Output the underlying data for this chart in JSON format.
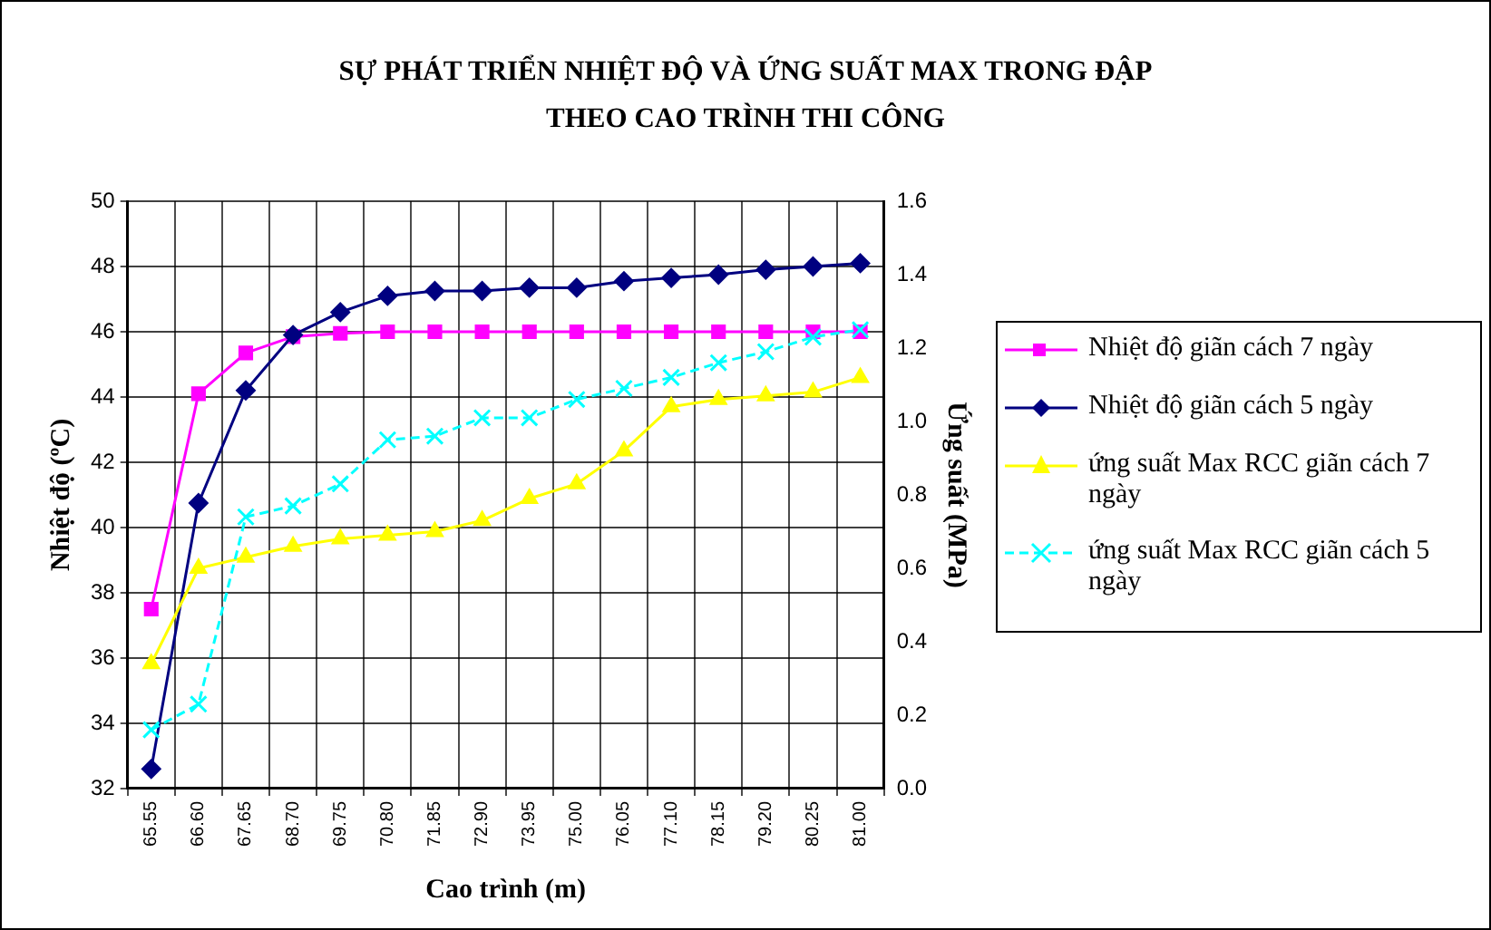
{
  "chart_data": {
    "type": "line",
    "title": "SỰ PHÁT TRIỂN NHIỆT ĐỘ VÀ ỨNG SUẤT MAX TRONG ĐẬP\nTHEO CAO TRÌNH THI CÔNG",
    "xlabel": "Cao trình (m)",
    "ylabel": "Nhiệt độ (ºC)",
    "y2label": "Ứng suất (MPa)",
    "categories": [
      "65.55",
      "66.60",
      "67.65",
      "68.70",
      "69.75",
      "70.80",
      "71.85",
      "72.90",
      "73.95",
      "75.00",
      "76.05",
      "77.10",
      "78.15",
      "79.20",
      "80.25",
      "81.00"
    ],
    "series": [
      {
        "name": "Nhiệt độ giãn cách 7 ngày",
        "color": "#ff00ff",
        "marker": "square",
        "line_style": "solid",
        "values": [
          37.5,
          44.1,
          45.35,
          45.85,
          45.95,
          46,
          46,
          46,
          46,
          46,
          46,
          46,
          46,
          46,
          46,
          46
        ]
      },
      {
        "name": "Nhiệt độ giãn cách 5 ngày",
        "color": "#000080",
        "marker": "diamond",
        "line_style": "solid",
        "values": [
          32.6,
          40.75,
          44.2,
          45.9,
          46.6,
          47.1,
          47.25,
          47.25,
          47.35,
          47.35,
          47.55,
          47.65,
          47.75,
          47.9,
          48.0,
          48.1
        ]
      },
      {
        "name": "ứng suất Max RCC giãn cách 7 ngày",
        "color": "#ffff00",
        "marker": "triangle",
        "line_style": "solid",
        "axis": "y2",
        "values": [
          0.34,
          0.6,
          0.63,
          0.66,
          0.68,
          0.69,
          0.7,
          0.73,
          0.79,
          0.83,
          0.92,
          1.04,
          1.06,
          1.07,
          1.08,
          1.12
        ]
      },
      {
        "name": "ứng suất Max RCC giãn cách 5 ngày",
        "color": "#00ffff",
        "marker": "cross",
        "line_style": "dashed",
        "axis": "y2",
        "values": [
          0.16,
          0.23,
          0.74,
          0.77,
          0.83,
          0.95,
          0.96,
          1.01,
          1.01,
          1.06,
          1.09,
          1.12,
          1.16,
          1.19,
          1.23,
          1.25
        ]
      }
    ],
    "ylim": [
      32,
      50
    ],
    "yticks": [
      32,
      34,
      36,
      38,
      40,
      42,
      44,
      46,
      48,
      50
    ],
    "y2lim": [
      0,
      1.6
    ],
    "y2ticks": [
      {
        "value": 0,
        "label": "0.0"
      },
      {
        "value": 0.2,
        "label": "0.2"
      },
      {
        "value": 0.4,
        "label": "0.4"
      },
      {
        "value": 0.6,
        "label": "0.6"
      },
      {
        "value": 0.8,
        "label": "0.8"
      },
      {
        "value": 1.0,
        "label": "1.0"
      },
      {
        "value": 1.2,
        "label": "1.2"
      },
      {
        "value": 1.4,
        "label": "1.4"
      },
      {
        "value": 1.6,
        "label": "1.6"
      }
    ],
    "grid": true,
    "legend": "right"
  }
}
